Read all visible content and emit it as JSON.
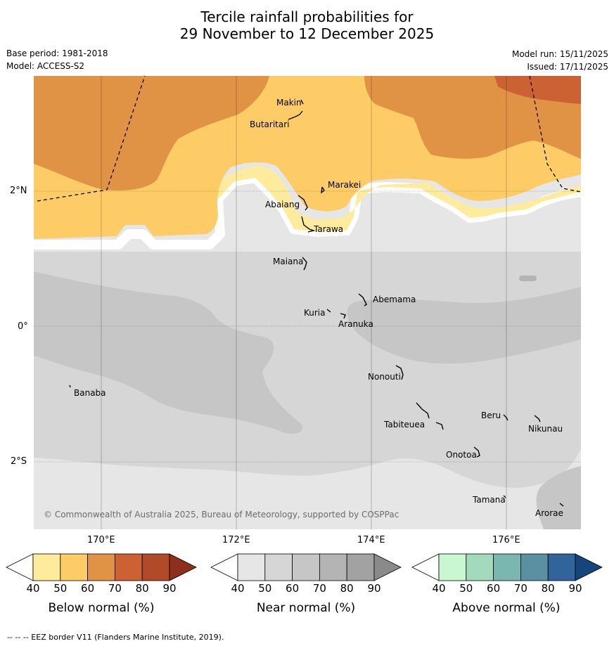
{
  "title": {
    "line1": "Tercile rainfall probabilities for",
    "line2": "29 November to 12 December 2025"
  },
  "meta": {
    "base_period": "Base period: 1981-2018",
    "model": "Model: ACCESS-S2",
    "model_run": "Model run: 15/11/2025",
    "issued": "Issued: 17/11/2025"
  },
  "map": {
    "lat_labels": [
      "2°N",
      "0°",
      "2°S"
    ],
    "lon_labels": [
      "170°E",
      "172°E",
      "174°E",
      "176°E"
    ],
    "places": [
      "Makin",
      "Butaritari",
      "Marakei",
      "Abaiang",
      "Tarawa",
      "Maiana",
      "Abemama",
      "Kuria",
      "Aranuka",
      "Banaba",
      "Nonouti",
      "Tabiteuea",
      "Beru",
      "Nikunau",
      "Onotoa",
      "Tamana",
      "Arorae"
    ],
    "copyright": "© Commonwealth of Australia 2025, Bureau of Meteorology, supported by COSPPac"
  },
  "colorbars": [
    {
      "label": "Below normal (%)",
      "ticks": [
        "40",
        "50",
        "60",
        "70",
        "80",
        "90"
      ],
      "colors": [
        "#ffffff",
        "#ffeb9c",
        "#fecc66",
        "#e09345",
        "#cc6233",
        "#b14a29",
        "#8e2f1d"
      ]
    },
    {
      "label": "Near normal (%)",
      "ticks": [
        "40",
        "50",
        "60",
        "70",
        "80",
        "90"
      ],
      "colors": [
        "#ffffff",
        "#e6e6e6",
        "#d6d6d6",
        "#c6c6c6",
        "#b4b4b4",
        "#a2a2a2",
        "#8a8a8a"
      ]
    },
    {
      "label": "Above normal (%)",
      "ticks": [
        "40",
        "50",
        "60",
        "70",
        "80",
        "90"
      ],
      "colors": [
        "#ffffff",
        "#c9f8d0",
        "#a3d9bd",
        "#7bb7b1",
        "#5a91a2",
        "#31649b",
        "#15457a"
      ]
    }
  ],
  "footer": "--  --  -- EEZ border V11 (Flanders Marine Institute, 2019)."
}
